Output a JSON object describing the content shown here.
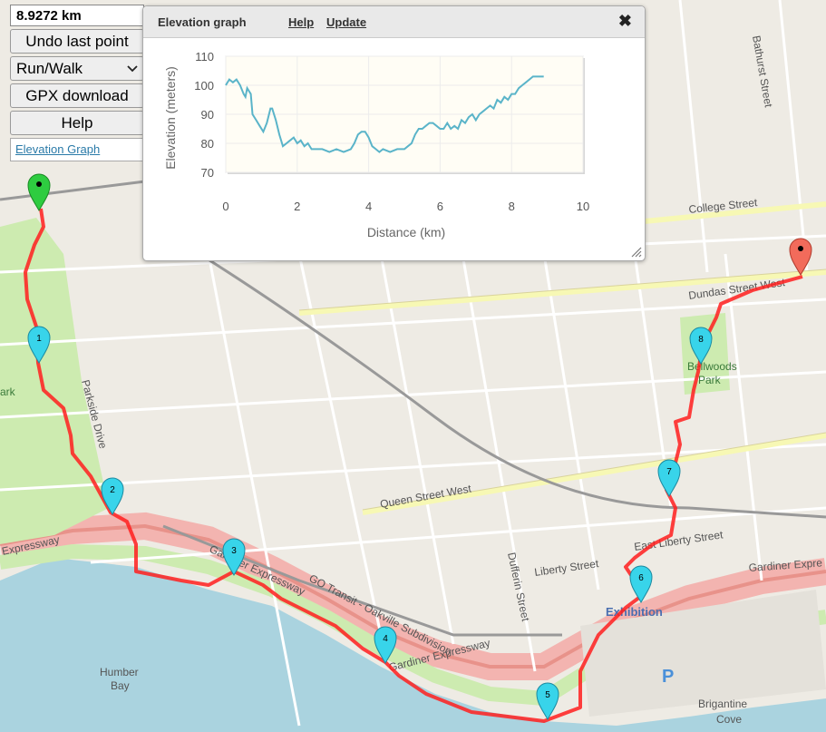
{
  "controls": {
    "distance": "8.9272 km",
    "undo_label": "Undo last point",
    "mode_value": "Run/Walk",
    "gpx_label": "GPX download",
    "help_label": "Help",
    "elevation_link": "Elevation Graph"
  },
  "elevation_panel": {
    "title": "Elevation graph",
    "help_link": "Help",
    "update_link": "Update",
    "close_icon": "close-icon"
  },
  "chart_data": {
    "type": "line",
    "xlabel": "Distance (km)",
    "ylabel": "Elevation (meters)",
    "xlim": [
      0,
      10
    ],
    "ylim": [
      70,
      110
    ],
    "x_ticks": [
      "0",
      "2",
      "4",
      "6",
      "8",
      "10"
    ],
    "y_ticks": [
      "70",
      "80",
      "90",
      "100",
      "110"
    ],
    "grid": true,
    "series_color": "#5ab4c9",
    "x": [
      0,
      0.1,
      0.2,
      0.3,
      0.4,
      0.5,
      0.55,
      0.6,
      0.7,
      0.75,
      0.85,
      0.95,
      1.05,
      1.15,
      1.25,
      1.3,
      1.4,
      1.5,
      1.6,
      1.7,
      1.8,
      1.9,
      2.0,
      2.1,
      2.2,
      2.3,
      2.4,
      2.5,
      2.7,
      2.9,
      3.1,
      3.3,
      3.5,
      3.6,
      3.7,
      3.8,
      3.9,
      4.0,
      4.1,
      4.2,
      4.3,
      4.4,
      4.6,
      4.8,
      5.0,
      5.1,
      5.2,
      5.3,
      5.4,
      5.5,
      5.6,
      5.7,
      5.8,
      5.9,
      6.0,
      6.1,
      6.2,
      6.3,
      6.4,
      6.5,
      6.6,
      6.7,
      6.8,
      6.9,
      7.0,
      7.1,
      7.2,
      7.3,
      7.4,
      7.5,
      7.6,
      7.7,
      7.8,
      7.9,
      8.0,
      8.1,
      8.2,
      8.3,
      8.4,
      8.5,
      8.6,
      8.7,
      8.8,
      8.9
    ],
    "y": [
      100,
      102,
      101,
      102,
      100,
      97,
      96,
      99,
      97,
      90,
      88,
      86,
      84,
      87,
      92,
      92,
      88,
      83,
      79,
      80,
      81,
      82,
      80,
      81,
      79,
      80,
      78,
      78,
      78,
      77,
      78,
      77,
      78,
      80,
      83,
      84,
      84,
      82,
      79,
      78,
      77,
      78,
      77,
      78,
      78,
      79,
      80,
      83,
      85,
      85,
      86,
      87,
      87,
      86,
      85,
      85,
      87,
      85,
      86,
      85,
      88,
      87,
      89,
      90,
      88,
      90,
      91,
      92,
      93,
      92,
      95,
      94,
      96,
      95,
      97,
      97,
      99,
      100,
      101,
      102,
      103,
      103,
      103,
      103
    ]
  }
}
